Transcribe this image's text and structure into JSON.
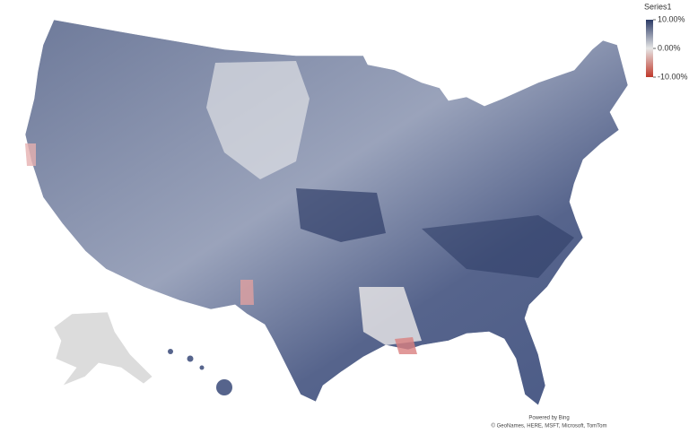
{
  "legend": {
    "title": "Series1",
    "range": [
      -10,
      10
    ],
    "ticks": [
      {
        "value": 10,
        "label": "10.00%"
      },
      {
        "value": 0,
        "label": "0.00%"
      },
      {
        "value": -10,
        "label": "-10.00%"
      }
    ],
    "colors": [
      "#2b3a66",
      "#e6e6e6",
      "#c0392b"
    ]
  },
  "attribution": {
    "powered": "Powered by Bing",
    "credits": "© GeoNames, HERE, MSFT, Microsoft, TomTom"
  }
}
